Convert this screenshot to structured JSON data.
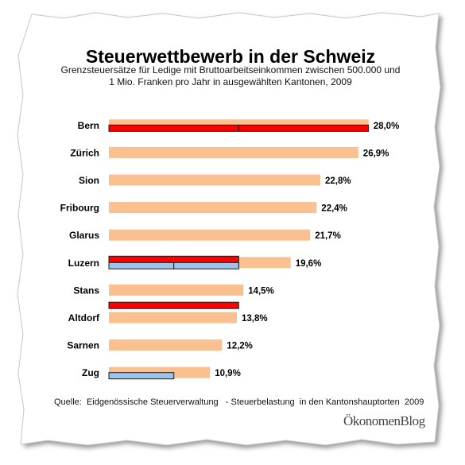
{
  "title": "Steuerwettbewerb in der Schweiz",
  "subtitle_line1": "Grenzsteuersätze für Ledige mit Bruttoarbeitseinkommen zwischen 500.000 und",
  "subtitle_line2": "1 Mio. Franken pro Jahr in ausgewählten Kantonen, 2009",
  "source": "Quelle:  Eidgenössische Steuerverwaltung   - Steuerbelastung  in den Kantonshauptorten  2009",
  "brand": "ÖkonomenBlog",
  "colors": {
    "bar": "#fac090",
    "red": "#ff0000",
    "blue": "#9cc3ea",
    "outline": "#1a1a1a"
  },
  "chart_data": {
    "type": "bar",
    "orientation": "horizontal",
    "categories": [
      "Bern",
      "Zürich",
      "Sion",
      "Fribourg",
      "Glarus",
      "Luzern",
      "Stans",
      "Altdorf",
      "Sarnen",
      "Zug"
    ],
    "values": [
      28.0,
      26.9,
      22.8,
      22.4,
      21.7,
      19.6,
      14.5,
      13.8,
      12.2,
      10.9
    ],
    "value_labels": [
      "28,0%",
      "26,9%",
      "22,8%",
      "22,4%",
      "21,7%",
      "19,6%",
      "14,5%",
      "13,8%",
      "12,2%",
      "10,9%"
    ],
    "overlays": [
      {
        "category": "Bern",
        "color": "red",
        "segments": [
          14.0,
          28.0
        ]
      },
      {
        "category": "Luzern",
        "color": "red",
        "segments": [
          14.0
        ]
      },
      {
        "category": "Luzern",
        "color": "blue",
        "segments": [
          7.0,
          14.0
        ]
      },
      {
        "category": "Altdorf",
        "color": "red",
        "segments": [
          14.0
        ]
      },
      {
        "category": "Zug",
        "color": "blue",
        "segments": [
          7.0
        ]
      }
    ],
    "xlim": [
      0,
      30
    ],
    "grid": false,
    "legend": "none"
  }
}
